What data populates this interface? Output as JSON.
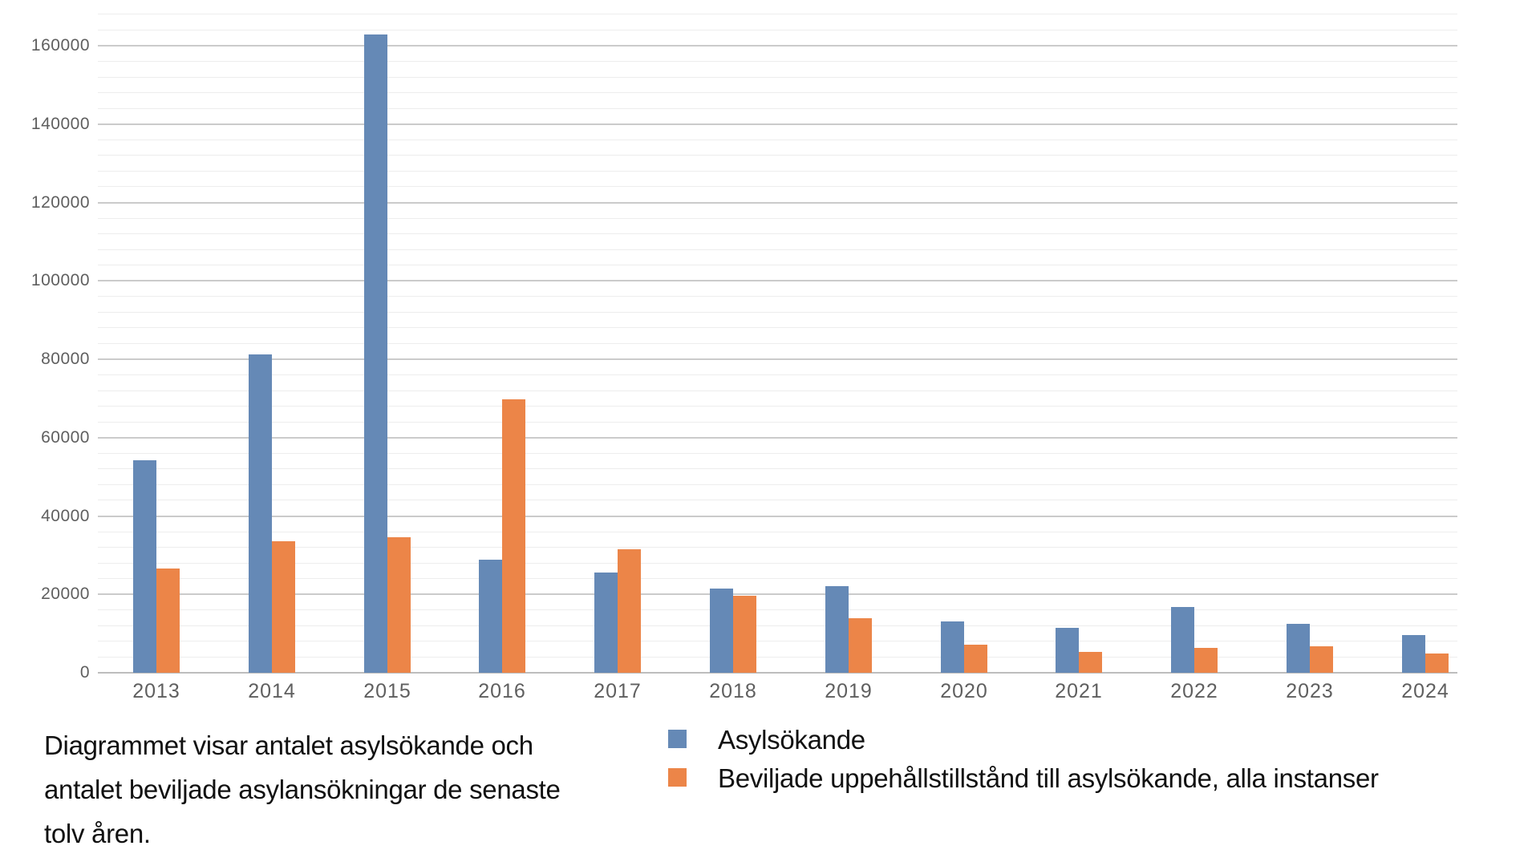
{
  "chart_data": {
    "type": "bar",
    "title": "",
    "xlabel": "",
    "ylabel": "",
    "categories": [
      "2013",
      "2014",
      "2015",
      "2016",
      "2017",
      "2018",
      "2019",
      "2020",
      "2021",
      "2022",
      "2023",
      "2024"
    ],
    "series": [
      {
        "name": "Asylsökande",
        "color": "#6589b6",
        "values": [
          54300,
          81300,
          162900,
          28900,
          25600,
          21500,
          22000,
          13000,
          11400,
          16800,
          12500,
          9700
        ]
      },
      {
        "name": "Beviljade uppehållstillstånd till asylsökande, alla instanser",
        "color": "#ec8548",
        "values": [
          26700,
          33500,
          34500,
          69800,
          31500,
          19600,
          13900,
          7100,
          5400,
          6300,
          6800,
          5000
        ]
      }
    ],
    "ylim": [
      0,
      168000
    ],
    "y_major_step": 20000,
    "y_minor_step": 4000,
    "y_tick_labels": [
      "0",
      "20000",
      "40000",
      "60000",
      "80000",
      "100000",
      "120000",
      "140000",
      "160000"
    ],
    "grid": "horizontal-only",
    "legend_position": "bottom-right-of-caption"
  },
  "caption": {
    "lines": [
      "Diagrammet visar antalet asylsökande och",
      "antalet beviljade asylansökningar de senaste",
      "tolv åren."
    ]
  },
  "colors": {
    "background": "#ffffff",
    "axis_text": "#5f5f5f",
    "caption_text": "#111111",
    "grid_minor": "#ededed",
    "grid_major": "#cbcbcb",
    "axis_line": "#bdbdbd"
  }
}
